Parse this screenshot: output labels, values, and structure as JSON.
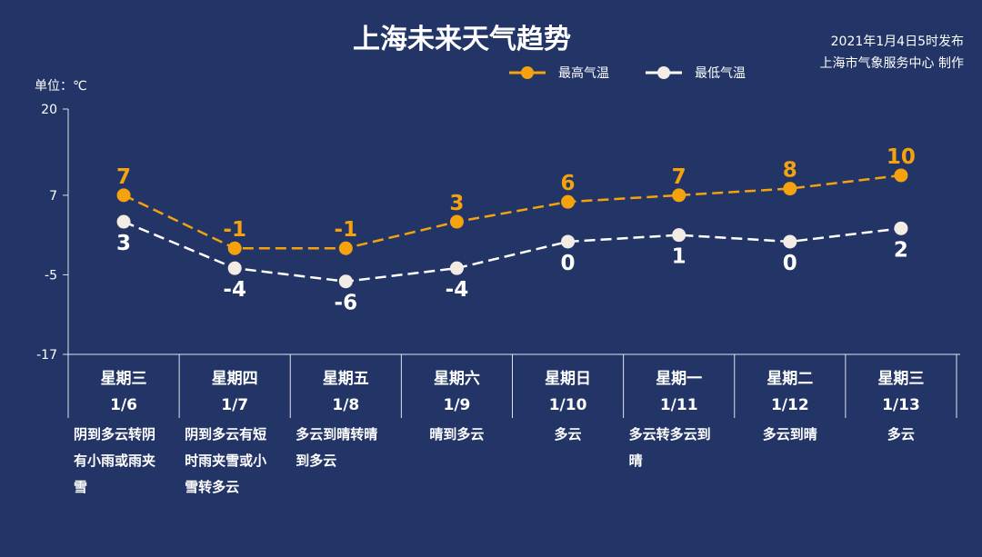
{
  "header": {
    "title": "上海未来天气趋势",
    "issue_time": "2021年1月4日5时发布",
    "publisher": "上海市气象服务中心 制作"
  },
  "colors": {
    "background": "#233567",
    "high": "#f5a20f",
    "low": "#ffffff",
    "axis": "#dfe3ee"
  },
  "chart_data": {
    "type": "line",
    "unit_label": "单位：℃",
    "ylim": [
      -17,
      20
    ],
    "yticks": [
      20,
      7,
      -5,
      -17
    ],
    "categories": [
      {
        "weekday": "星期三",
        "date": "1/6",
        "weather": "阴到多云转阴有小雨或雨夹雪"
      },
      {
        "weekday": "星期四",
        "date": "1/7",
        "weather": "阴到多云有短时雨夹雪或小雪转多云"
      },
      {
        "weekday": "星期五",
        "date": "1/8",
        "weather": "多云到晴转晴到多云"
      },
      {
        "weekday": "星期六",
        "date": "1/9",
        "weather": "晴到多云"
      },
      {
        "weekday": "星期日",
        "date": "1/10",
        "weather": "多云"
      },
      {
        "weekday": "星期一",
        "date": "1/11",
        "weather": "多云转多云到晴"
      },
      {
        "weekday": "星期二",
        "date": "1/12",
        "weather": "多云到晴"
      },
      {
        "weekday": "星期三",
        "date": "1/13",
        "weather": "多云"
      }
    ],
    "series": [
      {
        "name": "最高气温",
        "values": [
          7,
          -1,
          -1,
          3,
          6,
          7,
          8,
          10
        ]
      },
      {
        "name": "最低气温",
        "values": [
          3,
          -4,
          -6,
          -4,
          0,
          1,
          0,
          2
        ]
      }
    ],
    "legend": "top-center"
  }
}
